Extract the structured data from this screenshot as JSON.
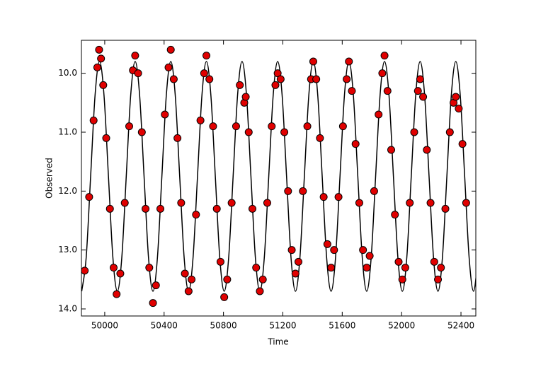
{
  "chart_data": {
    "type": "scatter+line",
    "xlabel": "Time",
    "ylabel": "Observed",
    "xlim": [
      49843,
      52500
    ],
    "ylim": [
      9.44,
      14.12
    ],
    "y_inverted": true,
    "xticks": [
      50000,
      50400,
      50800,
      51200,
      51600,
      52000,
      52400
    ],
    "yticks": [
      {
        "value": 10,
        "label": "10.0"
      },
      {
        "value": 11,
        "label": "11.0"
      },
      {
        "value": 12,
        "label": "12.0"
      },
      {
        "value": 13,
        "label": "13.0"
      },
      {
        "value": 14,
        "label": "14.0"
      }
    ],
    "series": [
      {
        "kind": "scatter",
        "color": "#e00000",
        "x": [
          49865,
          49895,
          49925,
          49950,
          49962,
          49975,
          49990,
          50010,
          50035,
          50060,
          50080,
          50105,
          50135,
          50165,
          50190,
          50205,
          50225,
          50250,
          50275,
          50300,
          50325,
          50345,
          50375,
          50405,
          50430,
          50445,
          50465,
          50490,
          50515,
          50540,
          50565,
          50585,
          50615,
          50645,
          50670,
          50685,
          50705,
          50730,
          50755,
          50780,
          50805,
          50825,
          50855,
          50885,
          50910,
          50940,
          50950,
          50970,
          50995,
          51020,
          51045,
          51065,
          51095,
          51125,
          51150,
          51165,
          51185,
          51210,
          51235,
          51260,
          51285,
          51305,
          51335,
          51365,
          51390,
          51405,
          51425,
          51450,
          51475,
          51500,
          51525,
          51545,
          51575,
          51605,
          51630,
          51645,
          51665,
          51690,
          51715,
          51740,
          51765,
          51785,
          51815,
          51845,
          51870,
          51885,
          51905,
          51930,
          51955,
          51980,
          52005,
          52025,
          52055,
          52085,
          52110,
          52125,
          52145,
          52170,
          52195,
          52220,
          52245,
          52265,
          52295,
          52325,
          52350,
          52365,
          52385,
          52410,
          52435
        ],
        "values": [
          13.35,
          12.1,
          10.8,
          9.9,
          9.6,
          9.75,
          10.2,
          11.1,
          12.3,
          13.3,
          13.75,
          13.4,
          12.2,
          10.9,
          9.95,
          9.7,
          10.0,
          11.0,
          12.3,
          13.3,
          13.9,
          13.6,
          12.3,
          10.7,
          9.9,
          9.6,
          10.1,
          11.1,
          12.2,
          13.4,
          13.7,
          13.5,
          12.4,
          10.8,
          10.0,
          9.7,
          10.1,
          10.9,
          12.3,
          13.2,
          13.8,
          13.5,
          12.2,
          10.9,
          10.2,
          10.5,
          10.4,
          11.0,
          12.3,
          13.3,
          13.7,
          13.5,
          12.2,
          10.9,
          10.2,
          10.0,
          10.1,
          11.0,
          12.0,
          13.0,
          13.4,
          13.2,
          12.0,
          10.9,
          10.1,
          9.8,
          10.1,
          11.1,
          12.1,
          12.9,
          13.3,
          13.0,
          12.1,
          10.9,
          10.1,
          9.8,
          10.3,
          11.2,
          12.2,
          13.0,
          13.3,
          13.1,
          12.0,
          10.7,
          10.0,
          9.7,
          10.3,
          11.3,
          12.4,
          13.2,
          13.5,
          13.3,
          12.2,
          11.0,
          10.3,
          10.1,
          10.4,
          11.3,
          12.2,
          13.2,
          13.5,
          13.3,
          12.3,
          11.0,
          10.5,
          10.4,
          10.6,
          11.2,
          12.2
        ]
      },
      {
        "kind": "line",
        "color": "#000000",
        "x": [
          49845,
          49875,
          49905,
          49935,
          49965,
          49995,
          50025,
          50055,
          50085,
          50115,
          50145,
          50175,
          50205,
          50235,
          50265,
          50295,
          50325,
          50355,
          50385,
          50415,
          50445,
          50475,
          50505,
          50535,
          50565,
          50595,
          50625,
          50655,
          50685,
          50715,
          50745,
          50775,
          50805,
          50835,
          50865,
          50895,
          50925,
          50955,
          50985,
          51015,
          51045,
          51075,
          51105,
          51135,
          51165,
          51195,
          51225,
          51255,
          51285,
          51315,
          51345,
          51375,
          51405,
          51435,
          51465,
          51495,
          51525,
          51555,
          51585,
          51615,
          51645,
          51675,
          51705,
          51735,
          51765,
          51795,
          51825,
          51855,
          51885,
          51915,
          51945,
          51975,
          52005,
          52035,
          52065,
          52095,
          52125,
          52155,
          52185,
          52215,
          52245,
          52275,
          52305,
          52335,
          52365,
          52395,
          52425,
          52455,
          52485,
          52515
        ],
        "values": [
          13.7,
          13.13,
          11.75,
          10.37,
          9.8,
          10.37,
          11.75,
          13.13,
          13.7,
          13.13,
          11.75,
          10.37,
          9.8,
          10.37,
          11.75,
          13.13,
          13.7,
          13.13,
          11.75,
          10.37,
          9.8,
          10.37,
          11.75,
          13.13,
          13.7,
          13.13,
          11.75,
          10.37,
          9.8,
          10.37,
          11.75,
          13.13,
          13.7,
          13.13,
          11.75,
          10.37,
          9.8,
          10.37,
          11.75,
          13.13,
          13.7,
          13.13,
          11.75,
          10.37,
          9.8,
          10.37,
          11.75,
          13.13,
          13.7,
          13.13,
          11.75,
          10.37,
          9.8,
          10.37,
          11.75,
          13.13,
          13.7,
          13.13,
          11.75,
          10.37,
          9.8,
          10.37,
          11.75,
          13.13,
          13.7,
          13.13,
          11.75,
          10.37,
          9.8,
          10.37,
          11.75,
          13.13,
          13.7,
          13.13,
          11.75,
          10.37,
          9.8,
          10.37,
          11.75,
          13.13,
          13.7,
          13.13,
          11.75,
          10.37,
          9.8,
          10.37,
          11.75,
          13.13,
          13.7,
          13.13
        ]
      }
    ]
  }
}
